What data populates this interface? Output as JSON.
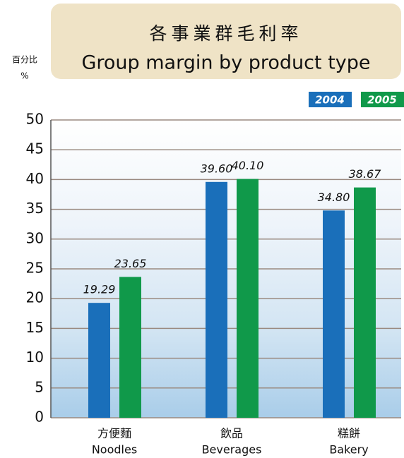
{
  "chart_data": {
    "type": "bar",
    "title_zh": "各事業群毛利率",
    "title": "Group margin by product type",
    "y_label": "百分比",
    "y_unit": "%",
    "categories_zh": [
      "方便麵",
      "飲品",
      "糕餅"
    ],
    "categories": [
      "Noodles",
      "Beverages",
      "Bakery"
    ],
    "series": [
      {
        "name": "2004",
        "color": "#1a6fba",
        "values": [
          19.29,
          39.6,
          34.8
        ],
        "value_labels": [
          "19.29",
          "39.60",
          "34.80"
        ]
      },
      {
        "name": "2005",
        "color": "#10994a",
        "values": [
          23.65,
          40.1,
          38.67
        ],
        "value_labels": [
          "23.65",
          "40.10",
          "38.67"
        ]
      }
    ],
    "ylim": [
      0,
      50
    ],
    "yticks": [
      0,
      5,
      10,
      15,
      20,
      25,
      30,
      35,
      40,
      45,
      50
    ],
    "grid": true
  }
}
